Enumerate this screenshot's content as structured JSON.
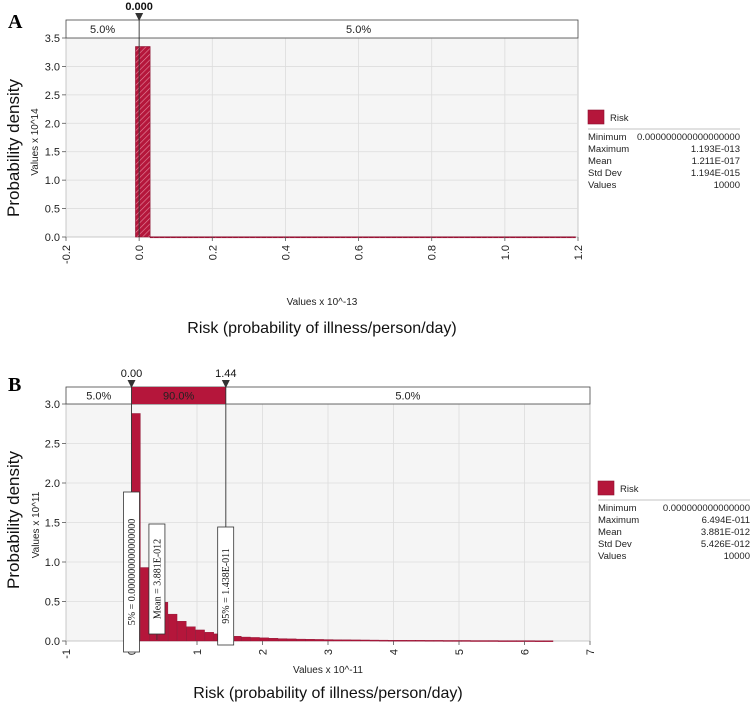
{
  "colors": {
    "bar": "#b5163b",
    "bar_light": "#c23a58",
    "plot_bg": "#f5f5f5",
    "grid": "#dcdcdc"
  },
  "chart_data": [
    {
      "panel": "A",
      "type": "bar",
      "title": "",
      "xlabel": "Risk (probability of illness/person/day)",
      "ylabel": "Probability density",
      "x_scale_label": "Values x 10^-13",
      "y_scale_label": "Values x 10^14",
      "xlim": [
        -0.2,
        1.2
      ],
      "ylim": [
        0,
        3.5
      ],
      "x_ticks": [
        "-0.2",
        "0.0",
        "0.2",
        "0.4",
        "0.6",
        "0.8",
        "1.0",
        "1.2"
      ],
      "y_ticks": [
        "0.0",
        "0.5",
        "1.0",
        "1.5",
        "2.0",
        "2.5",
        "3.0",
        "3.5"
      ],
      "bars": [
        {
          "x0": -0.01,
          "x1": 0.03,
          "y": 3.35
        },
        {
          "x0": 0.03,
          "x1": 1.193,
          "y": 0.004
        }
      ],
      "delimiters": [
        {
          "value": 0.0,
          "label": "0.000"
        }
      ],
      "band_segments": [
        "5.0%",
        "5.0%"
      ],
      "legend": {
        "series": "Risk"
      },
      "stats": [
        {
          "name": "Minimum",
          "value": "0.000000000000000000"
        },
        {
          "name": "Maximum",
          "value": "1.193E-013"
        },
        {
          "name": "Mean",
          "value": "1.211E-017"
        },
        {
          "name": "Std Dev",
          "value": "1.194E-015"
        },
        {
          "name": "Values",
          "value": "10000"
        }
      ],
      "annotations": []
    },
    {
      "panel": "B",
      "type": "bar",
      "title": "",
      "xlabel": "Risk (probability of illness/person/day)",
      "ylabel": "Probability density",
      "x_scale_label": "Values x 10^-11",
      "y_scale_label": "Values x 10^11",
      "xlim": [
        -1,
        7
      ],
      "ylim": [
        0,
        3.0
      ],
      "x_ticks": [
        "-1",
        "0",
        "1",
        "2",
        "3",
        "4",
        "5",
        "6",
        "7"
      ],
      "y_ticks": [
        "0.0",
        "0.5",
        "1.0",
        "1.5",
        "2.0",
        "2.5",
        "3.0"
      ],
      "bin_width": 0.14,
      "bin_start": 0,
      "values": [
        2.88,
        0.93,
        0.7,
        0.49,
        0.34,
        0.25,
        0.18,
        0.14,
        0.11,
        0.09,
        0.07,
        0.06,
        0.05,
        0.045,
        0.04,
        0.035,
        0.03,
        0.027,
        0.024,
        0.022,
        0.02,
        0.018,
        0.016,
        0.015,
        0.014,
        0.013,
        0.012,
        0.011,
        0.01,
        0.01,
        0.009,
        0.009,
        0.008,
        0.008,
        0.007,
        0.007,
        0.007,
        0.006,
        0.006,
        0.006,
        0.005,
        0.005,
        0.005,
        0.005,
        0.004,
        0.004
      ],
      "delimiters": [
        {
          "value": 0.0,
          "label": "0.00"
        },
        {
          "value": 1.44,
          "label": "1.44"
        }
      ],
      "band_segments": [
        "5.0%",
        "90.0%",
        "5.0%"
      ],
      "legend": {
        "series": "Risk"
      },
      "stats": [
        {
          "name": "Minimum",
          "value": "0.000000000000000"
        },
        {
          "name": "Maximum",
          "value": "6.494E-011"
        },
        {
          "name": "Mean",
          "value": "3.881E-012"
        },
        {
          "name": "Std Dev",
          "value": "5.426E-012"
        },
        {
          "name": "Values",
          "value": "10000"
        }
      ],
      "annotations": [
        {
          "value": 0.0,
          "text": "5% = 0.000000000000000"
        },
        {
          "value": 0.3881,
          "text": "Mean = 3.881E-012"
        },
        {
          "value": 1.438,
          "text": "95% = 1.438E-011"
        }
      ]
    }
  ]
}
